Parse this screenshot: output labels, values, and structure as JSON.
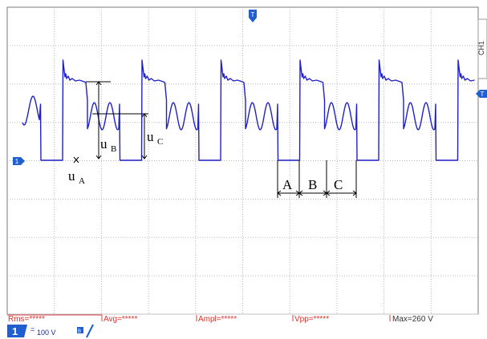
{
  "chart_data": {
    "type": "line",
    "title": "",
    "xlabel": "",
    "ylabel": "",
    "grid": true,
    "x_divisions": 10,
    "y_divisions": 8,
    "y_units_per_div": 100,
    "y_unit": "V",
    "ylim": [
      -200,
      300
    ],
    "series": [
      {
        "name": "",
        "description_points": [
          [
            0,
            0.0
          ]
        ]
      }
    ],
    "annotations": {
      "u_A": "u",
      "u_A_sub": "A",
      "u_B": "u",
      "u_B_sub": "B",
      "u_C": "u",
      "u_C_sub": "C",
      "interval_A": "A",
      "interval_B": "B",
      "interval_C": "C"
    }
  },
  "colors": {
    "trace": "#2020c8",
    "measure_text": "#e0302a",
    "channel_badge": "#1f5fd0",
    "grid": "#b8b8b8"
  },
  "markers": {
    "trigger_top": "T",
    "trigger_right": "T",
    "ground_left": "1",
    "channel_tab_right": "CH1"
  },
  "measurements": {
    "rms": "Rms=*****",
    "avg": "Avg=*****",
    "ampl": "Ampl=*****",
    "vpp": "Vpp=*****",
    "max": "Max=260 V"
  },
  "channel": {
    "number": "1",
    "coupling": "=",
    "scale": "100 V",
    "bw_icon": "B"
  }
}
